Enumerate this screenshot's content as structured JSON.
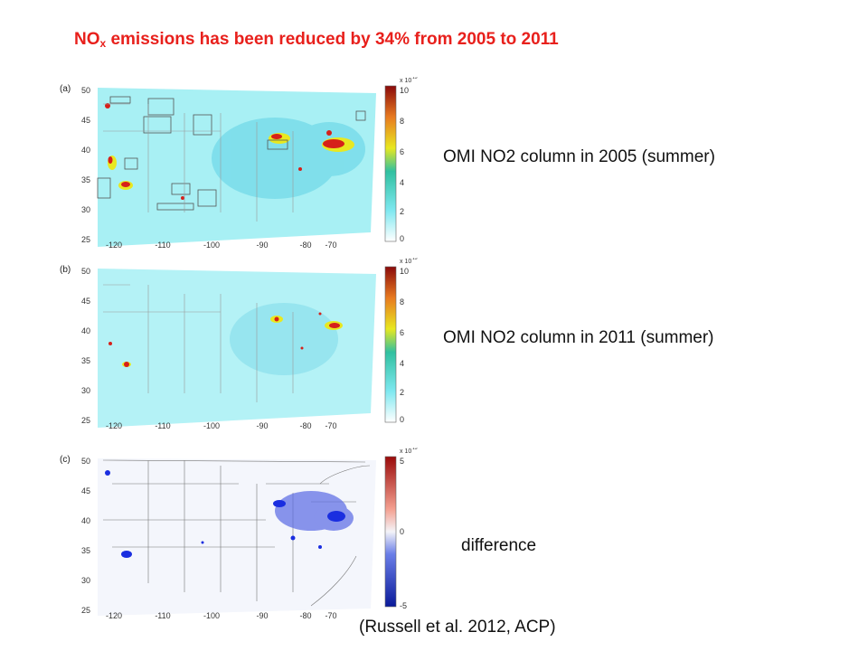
{
  "title": {
    "prefix": "NO",
    "sub": "x",
    "rest": " emissions has been reduced by 34% from 2005 to 2011"
  },
  "panels": [
    {
      "id": "a",
      "tag": "(a)",
      "label": "OMI NO2 column in 2005 (summer)",
      "lat_ticks": [
        "50",
        "45",
        "40",
        "35",
        "30",
        "25"
      ],
      "lon_ticks": [
        "-120",
        "-110",
        "-100",
        "-90",
        "-80",
        "-70"
      ],
      "colorbar": {
        "exponent": "x 10",
        "power": "15",
        "ticks": [
          "10",
          "8",
          "6",
          "4",
          "2",
          "0"
        ]
      }
    },
    {
      "id": "b",
      "tag": "(b)",
      "label": "OMI NO2 column in 2011 (summer)",
      "lat_ticks": [
        "50",
        "45",
        "40",
        "35",
        "30",
        "25"
      ],
      "lon_ticks": [
        "-120",
        "-110",
        "-100",
        "-90",
        "-80",
        "-70"
      ],
      "colorbar": {
        "exponent": "x 10",
        "power": "15",
        "ticks": [
          "10",
          "8",
          "6",
          "4",
          "2",
          "0"
        ]
      }
    },
    {
      "id": "c",
      "tag": "(c)",
      "label": "difference",
      "lat_ticks": [
        "50",
        "45",
        "40",
        "35",
        "30",
        "25"
      ],
      "lon_ticks": [
        "-120",
        "-110",
        "-100",
        "-90",
        "-80",
        "-70"
      ],
      "colorbar": {
        "exponent": "x 10",
        "power": "15",
        "ticks": [
          "5",
          "0",
          "-5"
        ]
      }
    }
  ],
  "citation": "(Russell et al. 2012, ACP)",
  "colors": {
    "title": "#e8201c",
    "background_map": "#a8f0f4",
    "diff_map": "#f4f6fc",
    "hotspot": "#d6201a",
    "diff_hotspot": "#1a2ee0"
  }
}
